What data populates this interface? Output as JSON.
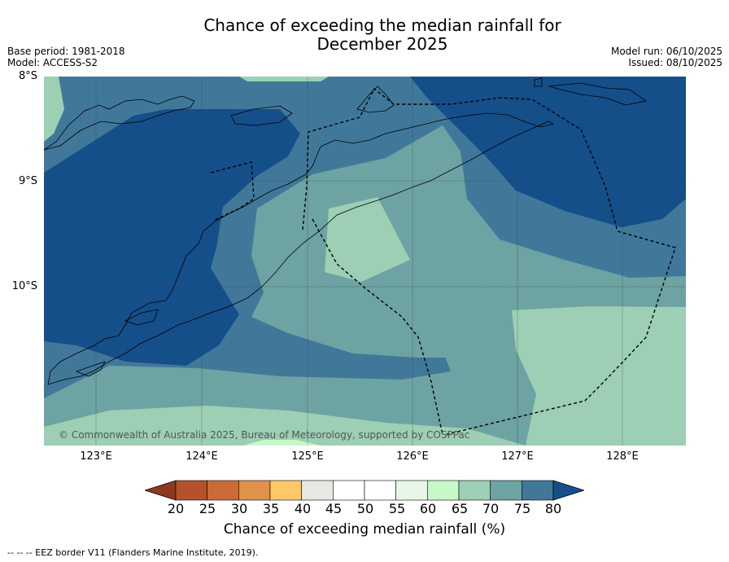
{
  "title": {
    "line1": "Chance of exceeding the median rainfall for",
    "line2": "December 2025"
  },
  "meta": {
    "base_period": "Base period: 1981-2018",
    "model": "Model: ACCESS-S2",
    "model_run": "Model run: 06/10/2025",
    "issued": "Issued: 08/10/2025"
  },
  "axes": {
    "lat_labels": [
      "8°S",
      "9°S",
      "10°S"
    ],
    "lon_labels": [
      "123°E",
      "124°E",
      "125°E",
      "126°E",
      "127°E",
      "128°E"
    ]
  },
  "copyright": "© Commonwealth of Australia 2025, Bureau of Meteorology, supported by COSPPac",
  "colorbar": {
    "ticks": [
      "20",
      "25",
      "30",
      "35",
      "40",
      "45",
      "50",
      "55",
      "60",
      "65",
      "70",
      "75",
      "80"
    ],
    "colors": [
      "#8b3a1e",
      "#b5512b",
      "#cc6a38",
      "#e0914a",
      "#fdc966",
      "#e8e8e2",
      "#ffffff",
      "#ffffff",
      "#e8f6e8",
      "#c8f8c8",
      "#9ccfb4",
      "#6da3a2",
      "#41789a",
      "#154f8a"
    ],
    "label": "Chance of exceeding median rainfall (%)"
  },
  "footnote": "--  --  -- EEZ border V11 (Flanders Marine Institute, 2019)."
}
